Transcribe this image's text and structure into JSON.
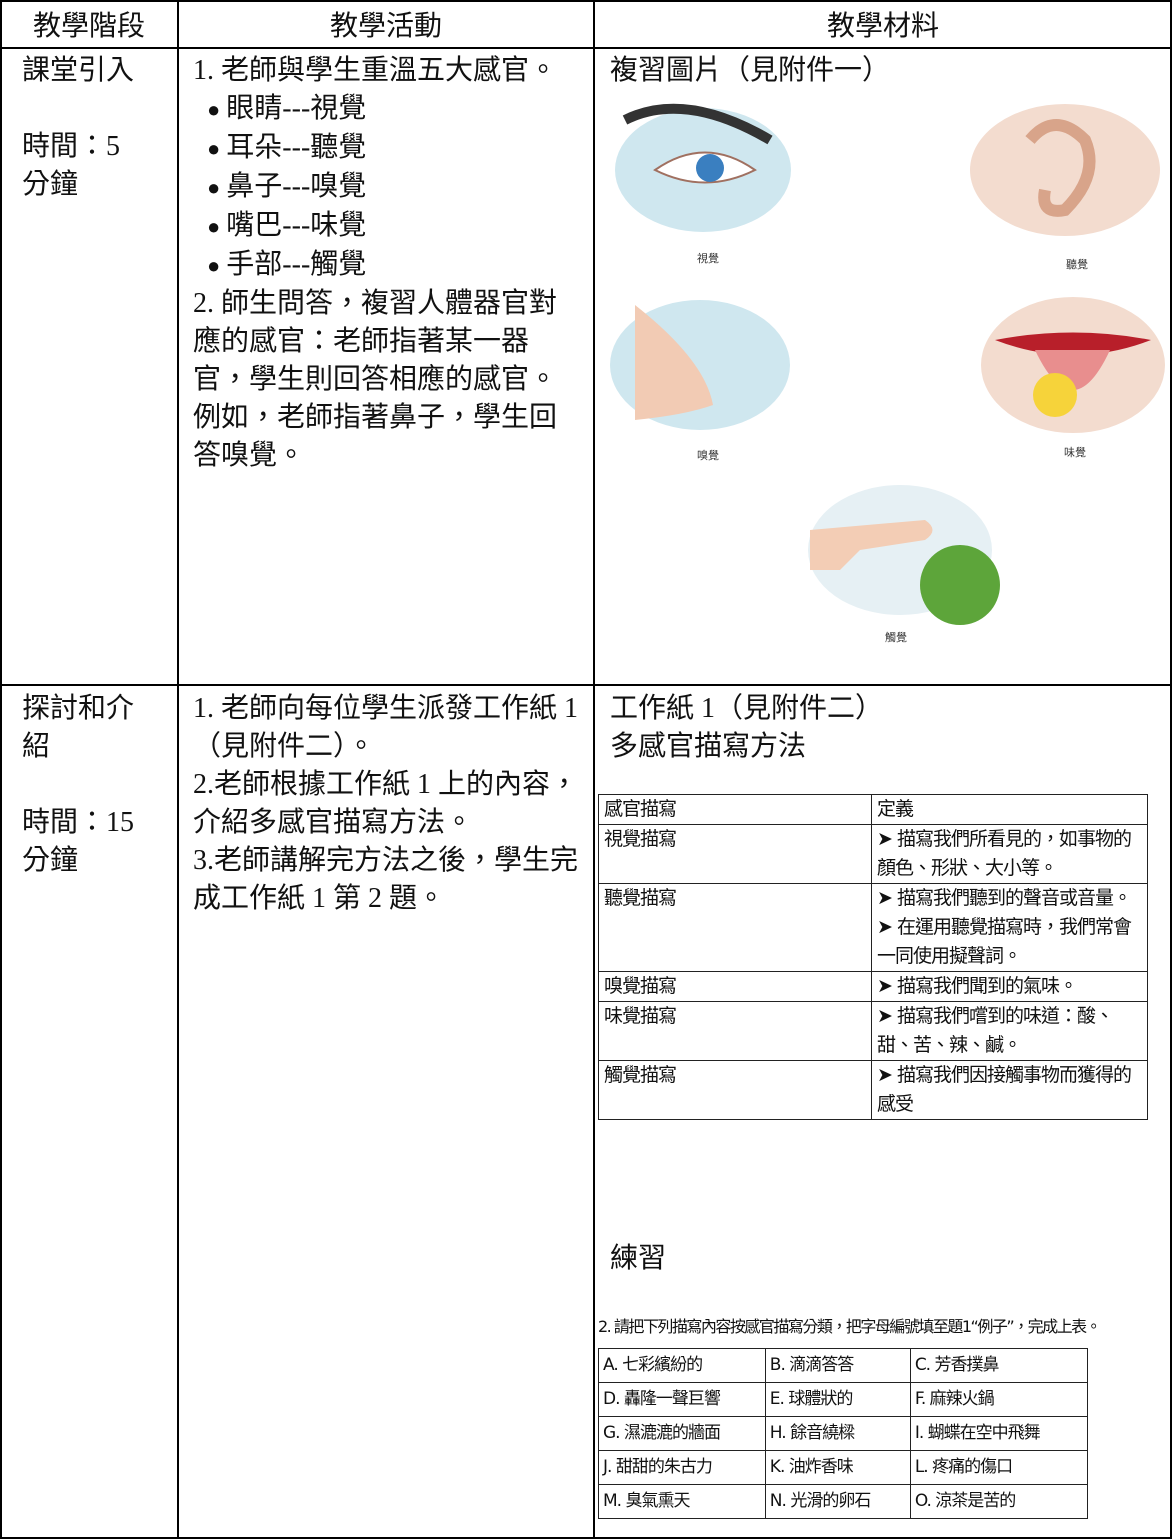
{
  "table": {
    "headers": [
      "教學階段",
      "教學活動",
      "教學材料"
    ],
    "rows": [
      {
        "stage": [
          "課堂引入"
        ],
        "time": [
          "時間：5",
          "分鐘"
        ],
        "activity": {
          "intro": "1. 老師與學生重溫五大感官。",
          "bullets": [
            "眼睛---視覺",
            "耳朵---聽覺",
            "鼻子---嗅覺",
            "嘴巴---味覺",
            "手部---觸覺"
          ],
          "outro": "2. 師生問答，複習人體器官對應的感官：老師指著某一器官，學生則回答相應的感官。例如，老師指著鼻子，學生回答嗅覺。"
        },
        "materials": {
          "title": "複習圖片（見附件一）",
          "captions": [
            "視覺",
            "聽覺",
            "嗅覺",
            "味覺",
            "觸覺"
          ]
        }
      },
      {
        "stage": [
          "探討和介",
          "紹"
        ],
        "time": [
          "時間：15",
          "分鐘"
        ],
        "activity": {
          "steps": [
            "1. 老師向每位學生派發工作紙 1（見附件二）。",
            "2.老師根據工作紙 1 上的內容，介紹多感官描寫方法。",
            "3.老師講解完方法之後，學生完成工作紙 1 第 2 題。"
          ]
        },
        "materials": {
          "title": "工作紙 1（見附件二）",
          "subtitle": "多感官描寫方法",
          "worksheet": {
            "header": [
              "感官描寫",
              "定義"
            ],
            "rows": [
              {
                "sense": "視覺描寫",
                "definition": [
                  "➤ 描寫我們所看見的，如事物的顏色、形狀、大小等。"
                ]
              },
              {
                "sense": "聽覺描寫",
                "definition": [
                  "➤ 描寫我們聽到的聲音或音量。",
                  "➤ 在運用聽覺描寫時，我們常會一同使用擬聲詞。"
                ]
              },
              {
                "sense": "嗅覺描寫",
                "definition": [
                  "➤ 描寫我們聞到的氣味。"
                ]
              },
              {
                "sense": "味覺描寫",
                "definition": [
                  "➤ 描寫我們嚐到的味道：酸、甜、苦、辣、鹹。"
                ]
              },
              {
                "sense": "觸覺描寫",
                "definition": [
                  "➤ 描寫我們因接觸事物而獲得的感受"
                ]
              }
            ]
          },
          "practice_title": "練習",
          "question": "2. 請把下列描寫內容按感官描寫分類，把字母編號填至題1“例子”，完成上表。",
          "options": [
            [
              "A. 七彩繽紛的",
              "B. 滴滴答答",
              "C. 芳香撲鼻"
            ],
            [
              "D. 轟隆一聲巨響",
              "E. 球體狀的",
              "F. 麻辣火鍋"
            ],
            [
              "G. 濕漉漉的牆面",
              "H. 餘音繞樑",
              "I. 蝴蝶在空中飛舞"
            ],
            [
              "J. 甜甜的朱古力",
              "K. 油炸香味",
              "L. 疼痛的傷口"
            ],
            [
              "M. 臭氣熏天",
              "N. 光滑的卵石",
              "O. 涼茶是苦的"
            ]
          ]
        }
      }
    ]
  }
}
